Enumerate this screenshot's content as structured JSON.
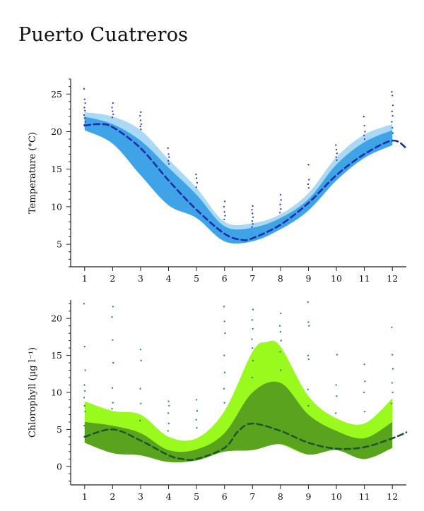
{
  "page": {
    "title": "Puerto Cuatreros"
  },
  "chart_data": [
    {
      "type": "area",
      "ylabel": "Temperature (°C)",
      "xlabel": "",
      "ylim": [
        2,
        27
      ],
      "xlim": [
        0.5,
        12.5
      ],
      "x_ticks": [
        1,
        2,
        3,
        4,
        5,
        6,
        7,
        8,
        9,
        10,
        11,
        12
      ],
      "y_ticks": [
        5,
        10,
        15,
        20,
        25
      ],
      "colors": {
        "outer_band": "#a9d9f5",
        "inner_band": "#3fa3e8",
        "mean_line": "#1a2fa6",
        "points": "#2b3bd1"
      },
      "series": [
        {
          "kind": "band-outer",
          "x": [
            1,
            2,
            3,
            4,
            5,
            6,
            7,
            8,
            9,
            10,
            11,
            12
          ],
          "upper": [
            22.6,
            22.0,
            20.2,
            16.3,
            12.5,
            8.0,
            7.8,
            9.0,
            11.8,
            16.6,
            19.6,
            21.0
          ],
          "lower": [
            20.2,
            18.4,
            14.2,
            10.2,
            8.5,
            5.4,
            5.4,
            7.0,
            9.5,
            13.5,
            16.5,
            18.2
          ]
        },
        {
          "kind": "band-inner",
          "x": [
            1,
            2,
            3,
            4,
            5,
            6,
            7,
            8,
            9,
            10,
            11,
            12
          ],
          "upper": [
            22.0,
            21.0,
            18.8,
            15.2,
            11.6,
            7.4,
            7.2,
            8.5,
            11.0,
            15.6,
            18.6,
            20.2
          ],
          "lower": [
            20.2,
            18.4,
            14.2,
            10.2,
            8.5,
            5.4,
            5.4,
            7.0,
            9.5,
            13.5,
            16.5,
            18.2
          ]
        },
        {
          "kind": "mean-line",
          "x": [
            1,
            1.5,
            2,
            3,
            4,
            5,
            6,
            6.6,
            7,
            8,
            9,
            10,
            11,
            12,
            12.5
          ],
          "y": [
            20.8,
            21.0,
            20.6,
            17.8,
            13.5,
            9.6,
            6.4,
            5.6,
            5.8,
            7.6,
            10.5,
            14.2,
            17.0,
            18.8,
            17.8
          ]
        },
        {
          "kind": "observations",
          "x": [
            1,
            1,
            1,
            1,
            1,
            1,
            1,
            1,
            1,
            2,
            2,
            2,
            2,
            2,
            3,
            3,
            3,
            3,
            3,
            3,
            4,
            4,
            4,
            4,
            4,
            5,
            5,
            5,
            5,
            6,
            6,
            6,
            6,
            6,
            7,
            7,
            7,
            7,
            7,
            7,
            7,
            8,
            8,
            8,
            8,
            8,
            9,
            9,
            9,
            9,
            10,
            10,
            10,
            10,
            10,
            11,
            11,
            11,
            11,
            11,
            12,
            12,
            12,
            12,
            12,
            12,
            12,
            12
          ],
          "y": [
            25.7,
            24.3,
            23.8,
            23.2,
            22.8,
            22.2,
            21.8,
            21.3,
            20.9,
            23.8,
            23.2,
            22.7,
            22.3,
            21.9,
            22.6,
            22.1,
            21.5,
            21.0,
            20.7,
            20.3,
            17.8,
            17.0,
            16.6,
            16.1,
            15.7,
            14.3,
            13.8,
            13.2,
            12.6,
            10.7,
            10.0,
            9.3,
            8.8,
            8.3,
            10.1,
            9.6,
            9.1,
            8.6,
            8.1,
            7.7,
            7.3,
            11.6,
            10.9,
            10.3,
            9.7,
            9.2,
            15.6,
            13.6,
            13.0,
            12.5,
            18.2,
            17.6,
            17.1,
            16.6,
            16.2,
            22.0,
            20.8,
            20.0,
            19.5,
            19.0,
            25.3,
            24.8,
            23.5,
            22.7,
            22.1,
            21.3,
            20.5,
            19.8
          ]
        }
      ]
    },
    {
      "type": "area",
      "ylabel": "Chlorophyll (µg l⁻¹)",
      "xlabel": "",
      "ylim": [
        -2.5,
        22.5
      ],
      "xlim": [
        0.5,
        12.5
      ],
      "x_ticks": [
        1,
        2,
        3,
        4,
        5,
        6,
        7,
        8,
        9,
        10,
        11,
        12
      ],
      "y_ticks": [
        0,
        5,
        10,
        15,
        20
      ],
      "colors": {
        "outer_band": "#9afa1e",
        "inner_band": "#5aa31e",
        "mean_line": "#1a5a2a",
        "points": "#1e8a6a"
      },
      "series": [
        {
          "kind": "band-outer",
          "x": [
            1,
            2,
            3,
            4,
            5,
            6,
            7,
            7.5,
            8,
            9,
            10,
            11,
            12
          ],
          "upper": [
            8.8,
            7.5,
            7.0,
            4.0,
            3.8,
            7.5,
            15.5,
            16.8,
            16.2,
            9.5,
            6.5,
            5.8,
            9.2
          ],
          "lower": [
            3.2,
            1.8,
            1.5,
            0.6,
            0.8,
            2.0,
            2.2,
            3.0,
            3.0,
            1.6,
            2.2,
            1.0,
            2.5
          ]
        },
        {
          "kind": "band-inner",
          "x": [
            1,
            2,
            3,
            4,
            5,
            6,
            7,
            8,
            9,
            10,
            11,
            12
          ],
          "upper": [
            6.0,
            5.5,
            4.5,
            2.2,
            2.3,
            4.5,
            10.0,
            11.3,
            7.0,
            4.8,
            3.8,
            6.0
          ],
          "lower": [
            3.2,
            1.8,
            1.5,
            0.6,
            0.8,
            2.0,
            2.2,
            3.0,
            1.6,
            2.2,
            1.0,
            2.5
          ]
        },
        {
          "kind": "mean-line",
          "x": [
            1,
            2,
            3,
            4,
            4.5,
            5,
            6,
            6.5,
            7,
            8,
            9,
            10,
            11,
            12,
            12.5
          ],
          "y": [
            4.0,
            5.0,
            3.5,
            1.5,
            1.0,
            1.0,
            2.5,
            4.8,
            5.8,
            4.8,
            3.2,
            2.4,
            2.6,
            3.8,
            4.6
          ]
        },
        {
          "kind": "observations",
          "x": [
            1,
            1,
            1,
            1,
            1,
            1,
            1,
            1,
            1,
            2,
            2,
            2,
            2,
            2,
            2,
            2,
            3,
            3,
            3,
            3,
            3,
            4,
            4,
            4,
            4,
            4,
            5,
            5,
            5,
            5,
            6,
            6,
            6,
            6,
            6,
            6,
            6,
            7,
            7,
            7,
            7,
            7,
            7,
            7,
            8,
            8,
            8,
            8,
            8,
            8,
            9,
            9,
            9,
            9,
            9,
            9,
            9,
            10,
            10,
            10,
            10,
            11,
            11,
            11,
            11,
            12,
            12,
            12,
            12,
            12,
            12
          ],
          "y": [
            22.0,
            16.2,
            13.0,
            11.0,
            10.2,
            9.3,
            8.2,
            7.4,
            5.5,
            21.6,
            20.2,
            17.1,
            14.0,
            10.6,
            8.6,
            7.8,
            15.8,
            14.3,
            10.5,
            8.5,
            6.2,
            8.8,
            8.2,
            7.2,
            5.8,
            4.8,
            9.0,
            7.5,
            6.3,
            5.2,
            21.6,
            19.6,
            18.0,
            15.0,
            12.7,
            10.5,
            8.6,
            21.2,
            19.8,
            18.6,
            17.2,
            16.0,
            14.3,
            12.0,
            20.7,
            19.0,
            18.2,
            17.0,
            15.5,
            13.0,
            22.2,
            19.5,
            19.0,
            15.0,
            14.5,
            10.4,
            8.2,
            15.1,
            11.0,
            9.5,
            7.2,
            13.8,
            11.5,
            10.0,
            7.4,
            18.8,
            15.1,
            13.2,
            11.3,
            10.0,
            8.5
          ]
        }
      ]
    }
  ]
}
